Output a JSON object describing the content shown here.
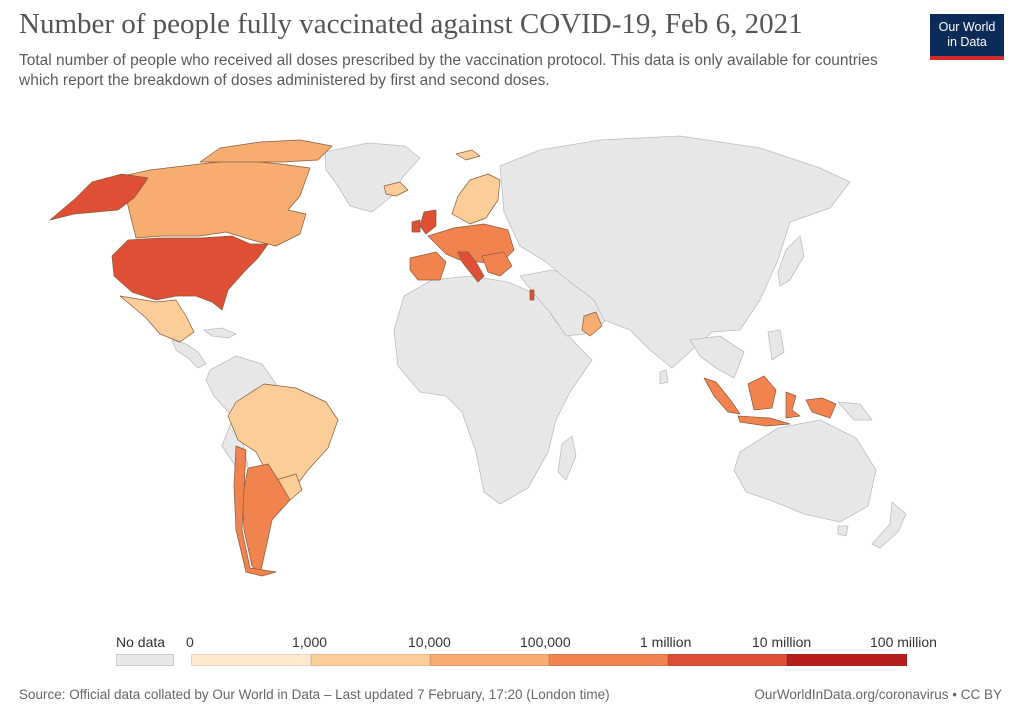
{
  "title": "Number of people fully vaccinated against COVID-19, Feb 6, 2021",
  "subtitle": "Total number of people who received all doses prescribed by the vaccination protocol. This data is only available for countries which report the breakdown of doses administered by first and second doses.",
  "logo": {
    "line1": "Our World",
    "line2": "in Data"
  },
  "legend": {
    "no_data_label": "No data",
    "tick_labels": [
      "0",
      "1,000",
      "10,000",
      "100,000",
      "1 million",
      "10 million",
      "100 million"
    ],
    "colors": [
      "#fde9cf",
      "#fbcd98",
      "#f7ac70",
      "#f1834f",
      "#df4f36",
      "#b61d1d"
    ],
    "no_data_color": "#e8e8e8"
  },
  "map_data": {
    "type": "choropleth",
    "regions": [
      {
        "name": "North America",
        "color": "#f7ac70"
      },
      {
        "name": "Alaska",
        "color": "#df4f36"
      },
      {
        "name": "United States",
        "color": "#df4f36"
      },
      {
        "name": "Mexico",
        "color": "#fbcd98"
      },
      {
        "name": "Brazil",
        "color": "#fbcd98"
      },
      {
        "name": "Argentina",
        "color": "#f1834f"
      },
      {
        "name": "Chile",
        "color": "#f1834f"
      },
      {
        "name": "Western Europe",
        "color": "#f1834f"
      },
      {
        "name": "Italy",
        "color": "#df4f36"
      },
      {
        "name": "Nordics",
        "color": "#fbcd98"
      },
      {
        "name": "Israel",
        "color": "#df4f36"
      },
      {
        "name": "Oman",
        "color": "#f7ac70"
      },
      {
        "name": "Indonesia",
        "color": "#f1834f"
      }
    ]
  },
  "footer": {
    "source": "Source: Official data collated by Our World in Data – Last updated 7 February, 17:20 (London time)",
    "license": "OurWorldInData.org/coronavirus • CC BY"
  }
}
